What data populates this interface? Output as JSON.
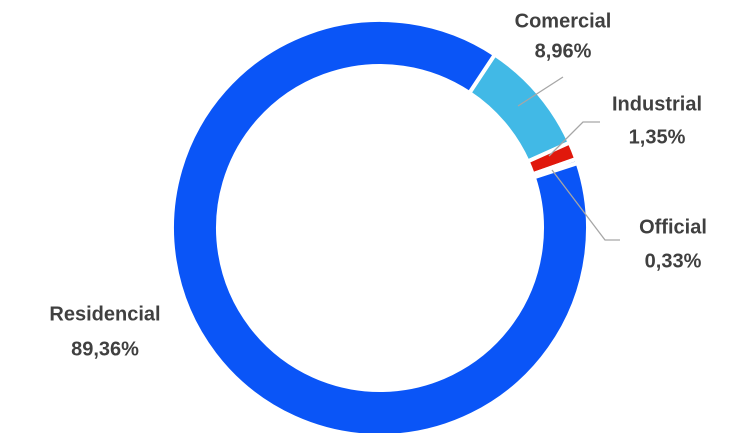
{
  "chart_data": {
    "type": "donut",
    "categories": [
      "Comercial",
      "Industrial",
      "Official",
      "Residencial"
    ],
    "values": [
      8.96,
      1.35,
      0.33,
      89.36
    ],
    "value_labels": [
      "8,96%",
      "1,35%",
      "0,33%",
      "89,36%"
    ],
    "colors": [
      "#41b9e6",
      "#e0180c",
      "#4a78d0",
      "#0a55f7"
    ]
  }
}
